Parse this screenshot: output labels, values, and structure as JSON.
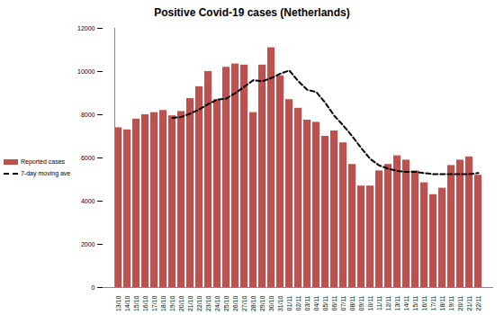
{
  "chart_data": {
    "type": "bar",
    "title": "Positive Covid-19 cases (Netherlands)",
    "categories": [
      "13/10",
      "14/10",
      "15/10",
      "16/10",
      "17/10",
      "18/10",
      "19/10",
      "20/10",
      "21/10",
      "22/10",
      "23/10",
      "24/10",
      "25/10",
      "26/10",
      "27/10",
      "28/10",
      "29/10",
      "30/10",
      "31/10",
      "01/11",
      "02/11",
      "03/11",
      "04/11",
      "05/11",
      "06/11",
      "07/11",
      "08/11",
      "09/11",
      "10/11",
      "11/11",
      "12/11",
      "13/11",
      "14/11",
      "15/11",
      "16/11",
      "17/11",
      "18/11",
      "19/11",
      "20/11",
      "21/11",
      "22/11"
    ],
    "series": [
      {
        "name": "Reported cases",
        "type": "bar",
        "color": "#c0504d",
        "values": [
          7400,
          7300,
          7800,
          8000,
          8100,
          8200,
          7950,
          8150,
          8750,
          9300,
          10000,
          8700,
          10200,
          10350,
          10300,
          8100,
          10300,
          11100,
          9800,
          8700,
          8300,
          7750,
          7650,
          7000,
          7250,
          6700,
          5700,
          4700,
          4700,
          5400,
          5700,
          6100,
          5900,
          5400,
          4850,
          4300,
          4600,
          5650,
          5900,
          6050,
          5200
        ]
      },
      {
        "name": "7-day moving average",
        "type": "line",
        "color": "#000000",
        "line_style": "dashed",
        "values": [
          null,
          null,
          null,
          null,
          null,
          null,
          7850,
          7900,
          8050,
          8250,
          8500,
          8700,
          8750,
          9000,
          9300,
          9600,
          9550,
          9700,
          9900,
          10050,
          9550,
          9150,
          9050,
          8550,
          7950,
          7500,
          7000,
          6450,
          5950,
          5650,
          5500,
          5400,
          5350,
          5350,
          5300,
          5250,
          5250,
          5250,
          5250,
          5250,
          5300
        ]
      }
    ],
    "ylim": [
      0,
      12000
    ],
    "yticks": [
      0,
      2000,
      4000,
      6000,
      8000,
      10000,
      12000
    ],
    "grid": false,
    "legend": "left"
  }
}
